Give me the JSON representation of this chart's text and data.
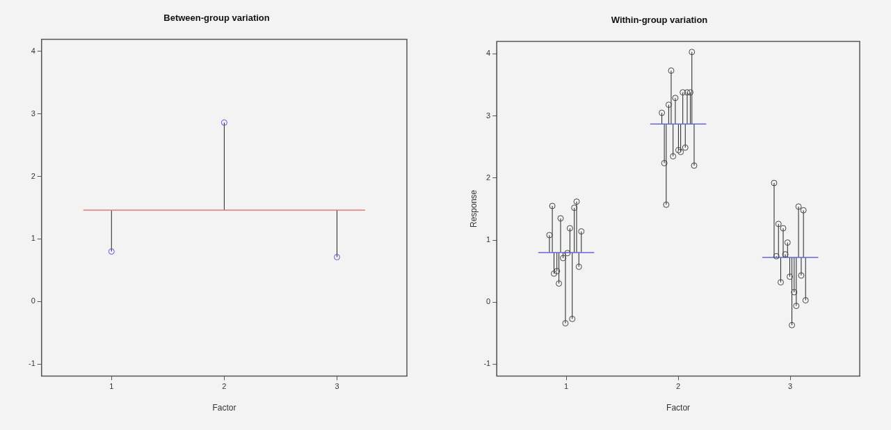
{
  "chart_data": [
    {
      "type": "scatter",
      "title": "Between-group variation",
      "xlabel": "Factor",
      "xlim": [
        0.38,
        3.62
      ],
      "xticks": [
        1,
        2,
        3
      ],
      "ylim": [
        -1.19,
        4.19
      ],
      "yticks": [
        -1,
        0,
        1,
        2,
        3,
        4
      ],
      "marker": "circle",
      "series": [
        {
          "type": "scatter",
          "color": "#5555dd",
          "x": [
            1,
            2,
            3
          ],
          "values": [
            0.8,
            2.86,
            0.71
          ],
          "errors": [
            [
              0.8,
              1.46
            ],
            [
              1.46,
              2.86
            ],
            [
              0.71,
              1.46
            ]
          ]
        },
        {
          "type": "line",
          "color": "#e07a7a",
          "marker": "none",
          "x": [
            0.75,
            3.25
          ],
          "values": [
            1.46,
            1.46
          ]
        }
      ]
    },
    {
      "type": "scatter",
      "title": "Within-group variation",
      "xlabel": "Factor",
      "ylabel": "Response",
      "xlim": [
        0.38,
        3.62
      ],
      "xticks": [
        1,
        2,
        3
      ],
      "ylim": [
        -1.19,
        4.2
      ],
      "yticks": [
        -1,
        0,
        1,
        2,
        3,
        4
      ],
      "marker": "circle",
      "series": [
        {
          "type": "scatter",
          "color": "#444444",
          "x": [
            0.85,
            0.876,
            0.891,
            0.917,
            0.935,
            0.95,
            0.972,
            0.993,
            1.011,
            1.033,
            1.054,
            1.072,
            1.093,
            1.113,
            1.135
          ],
          "values": [
            1.08,
            1.55,
            0.46,
            0.5,
            0.3,
            1.35,
            0.71,
            -0.34,
            0.79,
            1.19,
            -0.27,
            1.52,
            1.62,
            0.57,
            1.14
          ],
          "errors": [
            [
              0.8,
              1.08
            ],
            [
              0.8,
              1.55
            ],
            [
              0.46,
              0.8
            ],
            [
              0.5,
              0.8
            ],
            [
              0.3,
              0.8
            ],
            [
              0.8,
              1.35
            ],
            [
              0.71,
              0.8
            ],
            [
              -0.34,
              0.8
            ],
            [
              0.79,
              0.8
            ],
            [
              0.8,
              1.19
            ],
            [
              -0.27,
              0.8
            ],
            [
              0.8,
              1.52
            ],
            [
              0.8,
              1.62
            ],
            [
              0.57,
              0.8
            ],
            [
              0.8,
              1.14
            ]
          ]
        },
        {
          "type": "scatter",
          "color": "#444444",
          "x": [
            1.854,
            1.876,
            1.893,
            1.915,
            1.937,
            1.954,
            1.974,
            2.002,
            2.022,
            2.041,
            2.063,
            2.08,
            2.108,
            2.122,
            2.142
          ],
          "values": [
            3.05,
            2.24,
            1.57,
            3.18,
            3.73,
            2.35,
            3.29,
            2.45,
            2.42,
            3.38,
            2.49,
            3.38,
            3.38,
            4.03,
            2.2
          ],
          "errors": [
            [
              2.87,
              3.05
            ],
            [
              2.24,
              2.87
            ],
            [
              1.57,
              2.87
            ],
            [
              2.87,
              3.18
            ],
            [
              2.87,
              3.73
            ],
            [
              2.35,
              2.87
            ],
            [
              2.87,
              3.29
            ],
            [
              2.45,
              2.87
            ],
            [
              2.42,
              2.87
            ],
            [
              2.87,
              3.38
            ],
            [
              2.49,
              2.87
            ],
            [
              2.87,
              3.38
            ],
            [
              2.87,
              3.38
            ],
            [
              2.87,
              4.03
            ],
            [
              2.2,
              2.87
            ]
          ]
        },
        {
          "type": "scatter",
          "color": "#444444",
          "x": [
            2.856,
            2.876,
            2.895,
            2.915,
            2.937,
            2.956,
            2.976,
            2.996,
            3.015,
            3.035,
            3.054,
            3.074,
            3.098,
            3.118,
            3.137
          ],
          "values": [
            1.92,
            0.74,
            1.26,
            0.32,
            1.19,
            0.77,
            0.96,
            0.41,
            -0.37,
            0.16,
            -0.06,
            1.54,
            0.43,
            1.48,
            0.03
          ],
          "errors": [
            [
              0.72,
              1.92
            ],
            [
              0.72,
              0.74
            ],
            [
              0.72,
              1.26
            ],
            [
              0.32,
              0.72
            ],
            [
              0.72,
              1.19
            ],
            [
              0.72,
              0.77
            ],
            [
              0.72,
              0.96
            ],
            [
              0.41,
              0.72
            ],
            [
              -0.37,
              0.72
            ],
            [
              0.16,
              0.72
            ],
            [
              -0.06,
              0.72
            ],
            [
              0.72,
              1.54
            ],
            [
              0.43,
              0.72
            ],
            [
              0.72,
              1.48
            ],
            [
              0.03,
              0.72
            ]
          ]
        },
        {
          "type": "line",
          "color": "#6666dd",
          "marker": "none",
          "x": [
            0.75,
            1.25
          ],
          "values": [
            0.8,
            0.8
          ]
        },
        {
          "type": "line",
          "color": "#6666dd",
          "marker": "none",
          "x": [
            1.75,
            2.25
          ],
          "values": [
            2.87,
            2.87
          ]
        },
        {
          "type": "line",
          "color": "#6666dd",
          "marker": "none",
          "x": [
            2.75,
            3.25
          ],
          "values": [
            0.72,
            0.72
          ]
        }
      ]
    }
  ]
}
